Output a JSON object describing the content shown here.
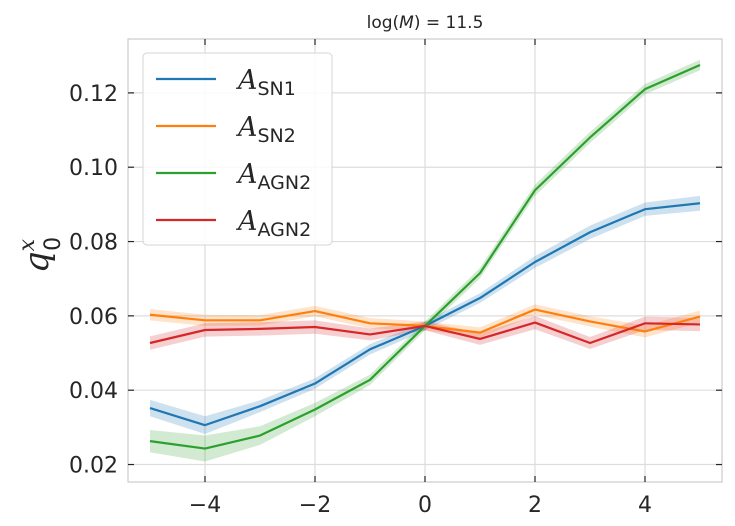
{
  "chart_data": {
    "type": "line",
    "title_main": "log(",
    "title_var": "M",
    "title_rest": ") = 11.5",
    "ylabel_main": "q",
    "ylabel_sup": "x",
    "ylabel_sub": "0",
    "x": [
      -5,
      -4,
      -3,
      -2,
      -1,
      0,
      1,
      2,
      3,
      4,
      5
    ],
    "xlim": [
      -5.4,
      5.4
    ],
    "ylim": [
      0.0153,
      0.1345
    ],
    "xticks": [
      -4,
      -2,
      0,
      2,
      4
    ],
    "xtick_labels": [
      "−4",
      "−2",
      "0",
      "2",
      "4"
    ],
    "yticks": [
      0.02,
      0.04,
      0.06,
      0.08,
      0.1,
      0.12
    ],
    "ytick_labels": [
      "0.02",
      "0.04",
      "0.06",
      "0.08",
      "0.10",
      "0.12"
    ],
    "grid": true,
    "legend_position": "top-left",
    "series": [
      {
        "name_main": "A",
        "name_sub": "SN1",
        "color": "#1f77b4",
        "values": [
          0.0352,
          0.0306,
          0.0357,
          0.0418,
          0.051,
          0.0573,
          0.0648,
          0.0745,
          0.0825,
          0.0887,
          0.0903
        ],
        "band": [
          0.0022,
          0.0024,
          0.0016,
          0.0014,
          0.0014,
          0.0012,
          0.0013,
          0.0016,
          0.0018,
          0.0018,
          0.002
        ]
      },
      {
        "name_main": "A",
        "name_sub": "SN2",
        "color": "#ff7f0e",
        "values": [
          0.0603,
          0.0588,
          0.0588,
          0.0613,
          0.058,
          0.0573,
          0.0555,
          0.0617,
          0.0585,
          0.0558,
          0.0598
        ],
        "band": [
          0.0015,
          0.0015,
          0.0014,
          0.0014,
          0.0014,
          0.0012,
          0.0014,
          0.0014,
          0.0014,
          0.0016,
          0.0016
        ]
      },
      {
        "name_main": "A",
        "name_sub": "AGN2",
        "color": "#2ca02c",
        "values": [
          0.0263,
          0.0243,
          0.0278,
          0.0348,
          0.0428,
          0.0573,
          0.0715,
          0.0938,
          0.108,
          0.121,
          0.1275
        ],
        "band": [
          0.003,
          0.0035,
          0.0025,
          0.0018,
          0.0014,
          0.0012,
          0.0014,
          0.0015,
          0.0015,
          0.0014,
          0.0014
        ]
      },
      {
        "name_main": "A",
        "name_sub": "AGN2",
        "color": "#d62728",
        "values": [
          0.0527,
          0.0562,
          0.0565,
          0.057,
          0.055,
          0.0573,
          0.0538,
          0.0582,
          0.0527,
          0.058,
          0.0577
        ],
        "band": [
          0.0018,
          0.0018,
          0.0018,
          0.0018,
          0.0016,
          0.0012,
          0.0016,
          0.0018,
          0.0016,
          0.0018,
          0.0018
        ]
      }
    ]
  }
}
